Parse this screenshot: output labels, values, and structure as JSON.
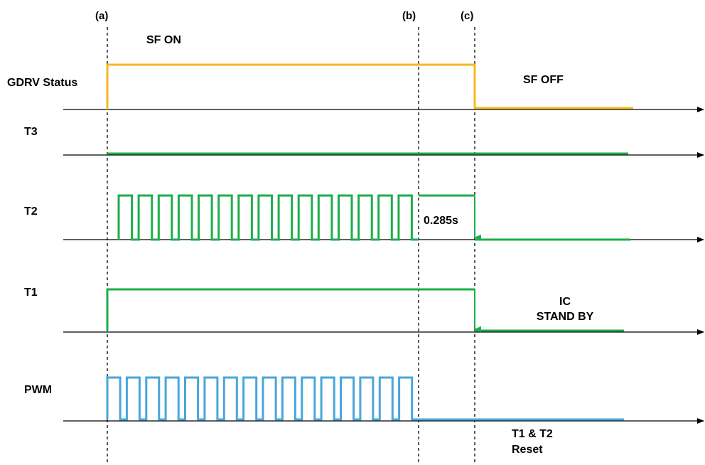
{
  "markers": {
    "a": "(a)",
    "b": "(b)",
    "c": "(c)"
  },
  "labels": {
    "sf_on": "SF ON",
    "sf_off": "SF OFF",
    "gdrv": "GDRV Status",
    "t3": "T3",
    "t2": "T2",
    "t1": "T1",
    "pwm": "PWM",
    "delay": "0.285s",
    "ic": "IC",
    "standby": "STAND BY",
    "reset_line1": "T1 & T2",
    "reset_line2": "Reset"
  },
  "colors": {
    "gdrv": "#F5B820",
    "t_signals": "#1DAE4B",
    "pwm": "#49A6DA",
    "axis": "#000000"
  },
  "signals": [
    {
      "id": "gdrv",
      "label_key": "gdrv",
      "states": [
        "low",
        "high from (a) to (c)",
        "low after (c)"
      ]
    },
    {
      "id": "t3",
      "label_key": "t3",
      "states": [
        "high throughout"
      ]
    },
    {
      "id": "t2",
      "label_key": "t2",
      "states": [
        "pulses from (a) to (b)",
        "high for 0.285s from (b) to (c)",
        "low after (c)"
      ]
    },
    {
      "id": "t1",
      "label_key": "t1",
      "states": [
        "high from (a) to (c)",
        "low after (c)"
      ]
    },
    {
      "id": "pwm",
      "label_key": "pwm",
      "states": [
        "pulses from (a) to (b)",
        "low after (b)"
      ]
    }
  ]
}
